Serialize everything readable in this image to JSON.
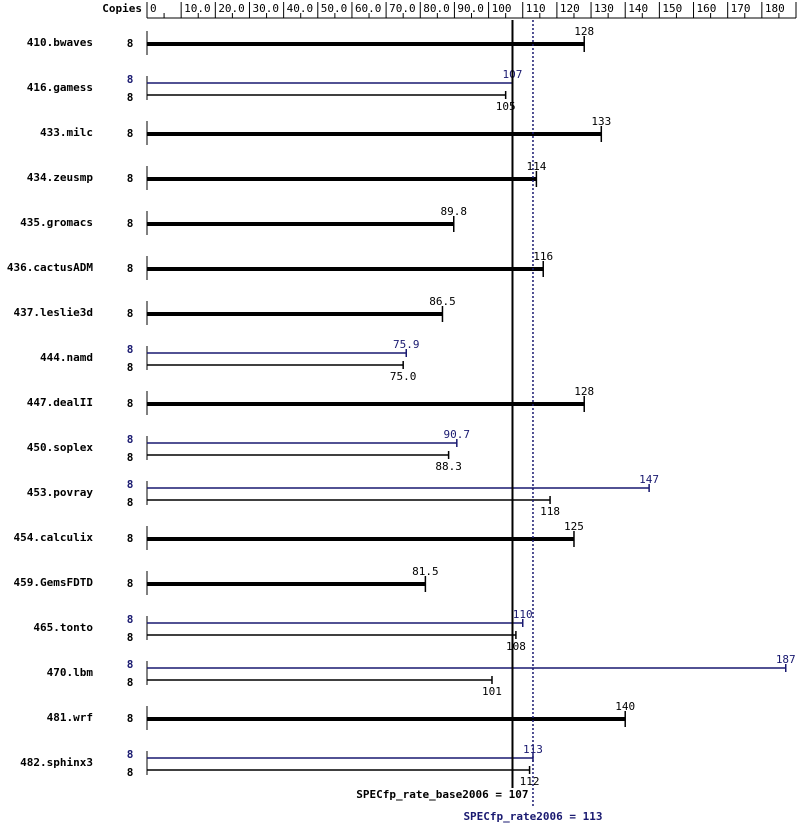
{
  "chart_data": {
    "type": "spec-bar",
    "copies_header": "Copies",
    "categories": [
      "410.bwaves",
      "416.gamess",
      "433.milc",
      "434.zeusmp",
      "435.gromacs",
      "436.cactusADM",
      "437.leslie3d",
      "444.namd",
      "447.dealII",
      "450.soplex",
      "453.povray",
      "454.calculix",
      "459.GemsFDTD",
      "465.tonto",
      "470.lbm",
      "481.wrf",
      "482.sphinx3"
    ],
    "series": [
      {
        "color": "#000000",
        "copies": [
          8,
          8,
          8,
          8,
          8,
          8,
          8,
          8,
          8,
          8,
          8,
          8,
          8,
          8,
          8,
          8,
          8
        ],
        "values": [
          128,
          105,
          133,
          114,
          89.8,
          116,
          86.5,
          75,
          128,
          88.3,
          118,
          125,
          81.5,
          108,
          101,
          140,
          112
        ],
        "value_labels": [
          "128",
          "105",
          "133",
          "114",
          "89.8",
          "116",
          "86.5",
          "75.0",
          "128",
          "88.3",
          "118",
          "125",
          "81.5",
          "108",
          "101",
          "140",
          "112"
        ]
      },
      {
        "color": "#191970",
        "copies": [
          null,
          8,
          null,
          null,
          null,
          null,
          null,
          8,
          null,
          8,
          8,
          null,
          null,
          8,
          8,
          null,
          8
        ],
        "values": [
          null,
          107,
          null,
          null,
          null,
          null,
          null,
          75.9,
          null,
          90.7,
          147,
          null,
          null,
          110,
          187,
          null,
          113
        ],
        "value_labels": [
          null,
          "107",
          null,
          null,
          null,
          null,
          null,
          "75.9",
          null,
          "90.7",
          "147",
          null,
          null,
          "110",
          "187",
          null,
          "113"
        ]
      }
    ],
    "xlim": [
      0,
      190
    ],
    "xticks": [
      0,
      {
        "value": 10,
        "label": "10.0"
      },
      {
        "value": 20,
        "label": "20.0"
      },
      {
        "value": 30,
        "label": "30.0"
      },
      {
        "value": 40,
        "label": "40.0"
      },
      {
        "value": 50,
        "label": "50.0"
      },
      {
        "value": 60,
        "label": "60.0"
      },
      {
        "value": 70,
        "label": "70.0"
      },
      {
        "value": 80,
        "label": "80.0"
      },
      {
        "value": 90,
        "label": "90.0"
      },
      100,
      110,
      120,
      130,
      140,
      150,
      160,
      170,
      180,
      190
    ],
    "summary": [
      {
        "label": "SPECfp_rate_base2006 = 107",
        "value": 107,
        "color": "#000000",
        "style": "solid"
      },
      {
        "label": "SPECfp_rate2006 = 113",
        "value": 113,
        "color": "#191970",
        "style": "dotted"
      }
    ]
  }
}
